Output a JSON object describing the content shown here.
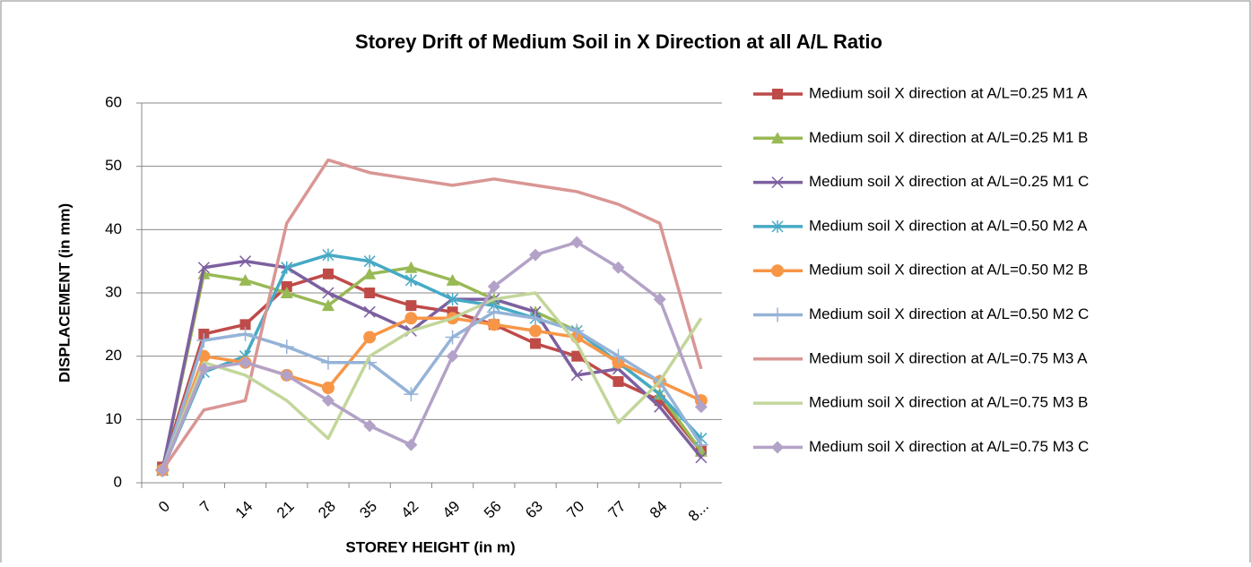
{
  "chart_data": {
    "type": "line",
    "title": "Storey Drift of Medium Soil in X Direction at all A/L Ratio",
    "x_label": "STOREY HEIGHT (in m)",
    "y_label": "DISPLACEMENT (in mm)",
    "categories": [
      "0",
      "7",
      "14",
      "21",
      "28",
      "35",
      "42",
      "49",
      "56",
      "63",
      "70",
      "77",
      "84",
      "8..."
    ],
    "ylim": [
      0,
      60
    ],
    "yticks": [
      0,
      10,
      20,
      30,
      40,
      50,
      60
    ],
    "grid": true,
    "legend": "right",
    "series": [
      {
        "name": "Medium soil X direction at A/L=0.25 M1 A",
        "color": "#be4b48",
        "marker": "square",
        "values": [
          2.5,
          23.5,
          25,
          31,
          33,
          30,
          28,
          27,
          25,
          22,
          20,
          16,
          13,
          5
        ]
      },
      {
        "name": "Medium soil X direction at A/L=0.25 M1 B",
        "color": "#98b954",
        "marker": "triangle",
        "values": [
          2,
          33,
          32,
          30,
          28,
          33,
          34,
          32,
          29,
          27,
          24,
          19,
          14,
          5
        ]
      },
      {
        "name": "Medium soil X direction at A/L=0.25 M1 C",
        "color": "#7d60a0",
        "marker": "x",
        "values": [
          2,
          34,
          35,
          34,
          30,
          27,
          24,
          29,
          29,
          27,
          17,
          18,
          12,
          4
        ]
      },
      {
        "name": "Medium soil X direction at A/L=0.50 M2 A",
        "color": "#46aac5",
        "marker": "star",
        "values": [
          2,
          17.5,
          20,
          34,
          36,
          35,
          32,
          29,
          28,
          26,
          24,
          19,
          14,
          7
        ]
      },
      {
        "name": "Medium soil X direction at A/L=0.50 M2 B",
        "color": "#f79646",
        "marker": "circle",
        "values": [
          2,
          20,
          19,
          17,
          15,
          23,
          26,
          26,
          25,
          24,
          23,
          19,
          16,
          13
        ]
      },
      {
        "name": "Medium soil X direction at A/L=0.50 M2 C",
        "color": "#95b3d7",
        "marker": "plus",
        "values": [
          2,
          22.5,
          23.5,
          21.5,
          19,
          19,
          14,
          23,
          27,
          26,
          24,
          20,
          16,
          6
        ]
      },
      {
        "name": "Medium soil X direction at A/L=0.75 M3 A",
        "color": "#d99694",
        "marker": "none",
        "values": [
          2,
          11.5,
          13,
          41,
          51,
          49,
          48,
          47,
          48,
          47,
          46,
          44,
          41,
          18
        ]
      },
      {
        "name": "Medium soil X direction at A/L=0.75 M3 B",
        "color": "#c3d69b",
        "marker": "none",
        "values": [
          2,
          19,
          17,
          13,
          7,
          20,
          24,
          26,
          29,
          30,
          22,
          9.5,
          16,
          26
        ]
      },
      {
        "name": "Medium soil X direction at A/L=0.75 M3 C",
        "color": "#b3a2c7",
        "marker": "diamond",
        "values": [
          2,
          18,
          19,
          17,
          13,
          9,
          6,
          20,
          31,
          36,
          38,
          34,
          29,
          12
        ]
      }
    ]
  }
}
